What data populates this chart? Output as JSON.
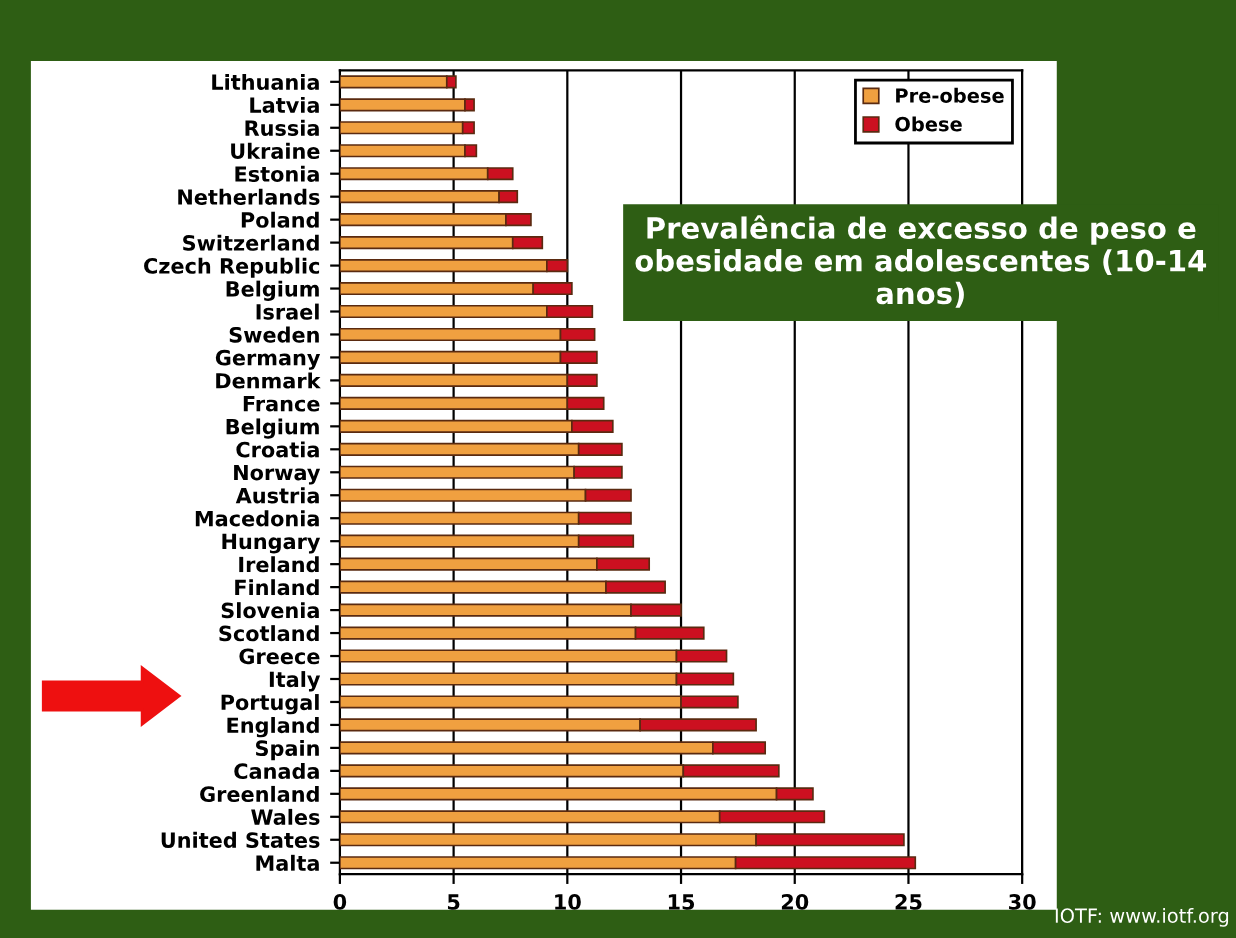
{
  "chart_data": {
    "type": "bar",
    "orientation": "horizontal",
    "stacked": true,
    "title": "Prevalência de excesso de peso e obesidade em adolescentes (10-14 anos)",
    "categories": [
      "Lithuania",
      "Latvia",
      "Russia",
      "Ukraine",
      "Estonia",
      "Netherlands",
      "Poland",
      "Switzerland",
      "Czech Republic",
      "Belgium",
      "Israel",
      "Sweden",
      "Germany",
      "Denmark",
      "France",
      "Belgium",
      "Croatia",
      "Norway",
      "Austria",
      "Macedonia",
      "Hungary",
      "Ireland",
      "Finland",
      "Slovenia",
      "Scotland",
      "Greece",
      "Italy",
      "Portugal",
      "England",
      "Spain",
      "Canada",
      "Greenland",
      "Wales",
      "United States",
      "Malta"
    ],
    "series": [
      {
        "name": "Pre-obese",
        "color": "#f0a040",
        "values": [
          4.7,
          5.5,
          5.4,
          5.5,
          6.5,
          7.0,
          7.3,
          7.6,
          9.1,
          8.5,
          9.1,
          9.7,
          9.7,
          10.0,
          10.0,
          10.2,
          10.5,
          10.3,
          10.8,
          10.5,
          10.5,
          11.3,
          11.7,
          12.8,
          13.0,
          14.8,
          14.8,
          15.0,
          13.2,
          16.4,
          15.1,
          19.2,
          16.7,
          18.3,
          17.4
        ]
      },
      {
        "name": "Obese",
        "color": "#cc1020",
        "values": [
          0.4,
          0.4,
          0.5,
          0.5,
          1.1,
          0.8,
          1.1,
          1.3,
          0.9,
          1.7,
          2.0,
          1.5,
          1.6,
          1.3,
          1.6,
          1.8,
          1.9,
          2.1,
          2.0,
          2.3,
          2.4,
          2.3,
          2.6,
          2.2,
          3.0,
          2.2,
          2.5,
          2.5,
          5.1,
          2.3,
          4.2,
          1.6,
          4.6,
          6.5,
          7.9
        ]
      }
    ],
    "xlim": [
      0,
      30
    ],
    "xticks": [
      0,
      5,
      10,
      15,
      20,
      25,
      30
    ],
    "grid": "x",
    "legend": "top right",
    "annotations": [
      "IOTF: www.iotf.org"
    ]
  }
}
